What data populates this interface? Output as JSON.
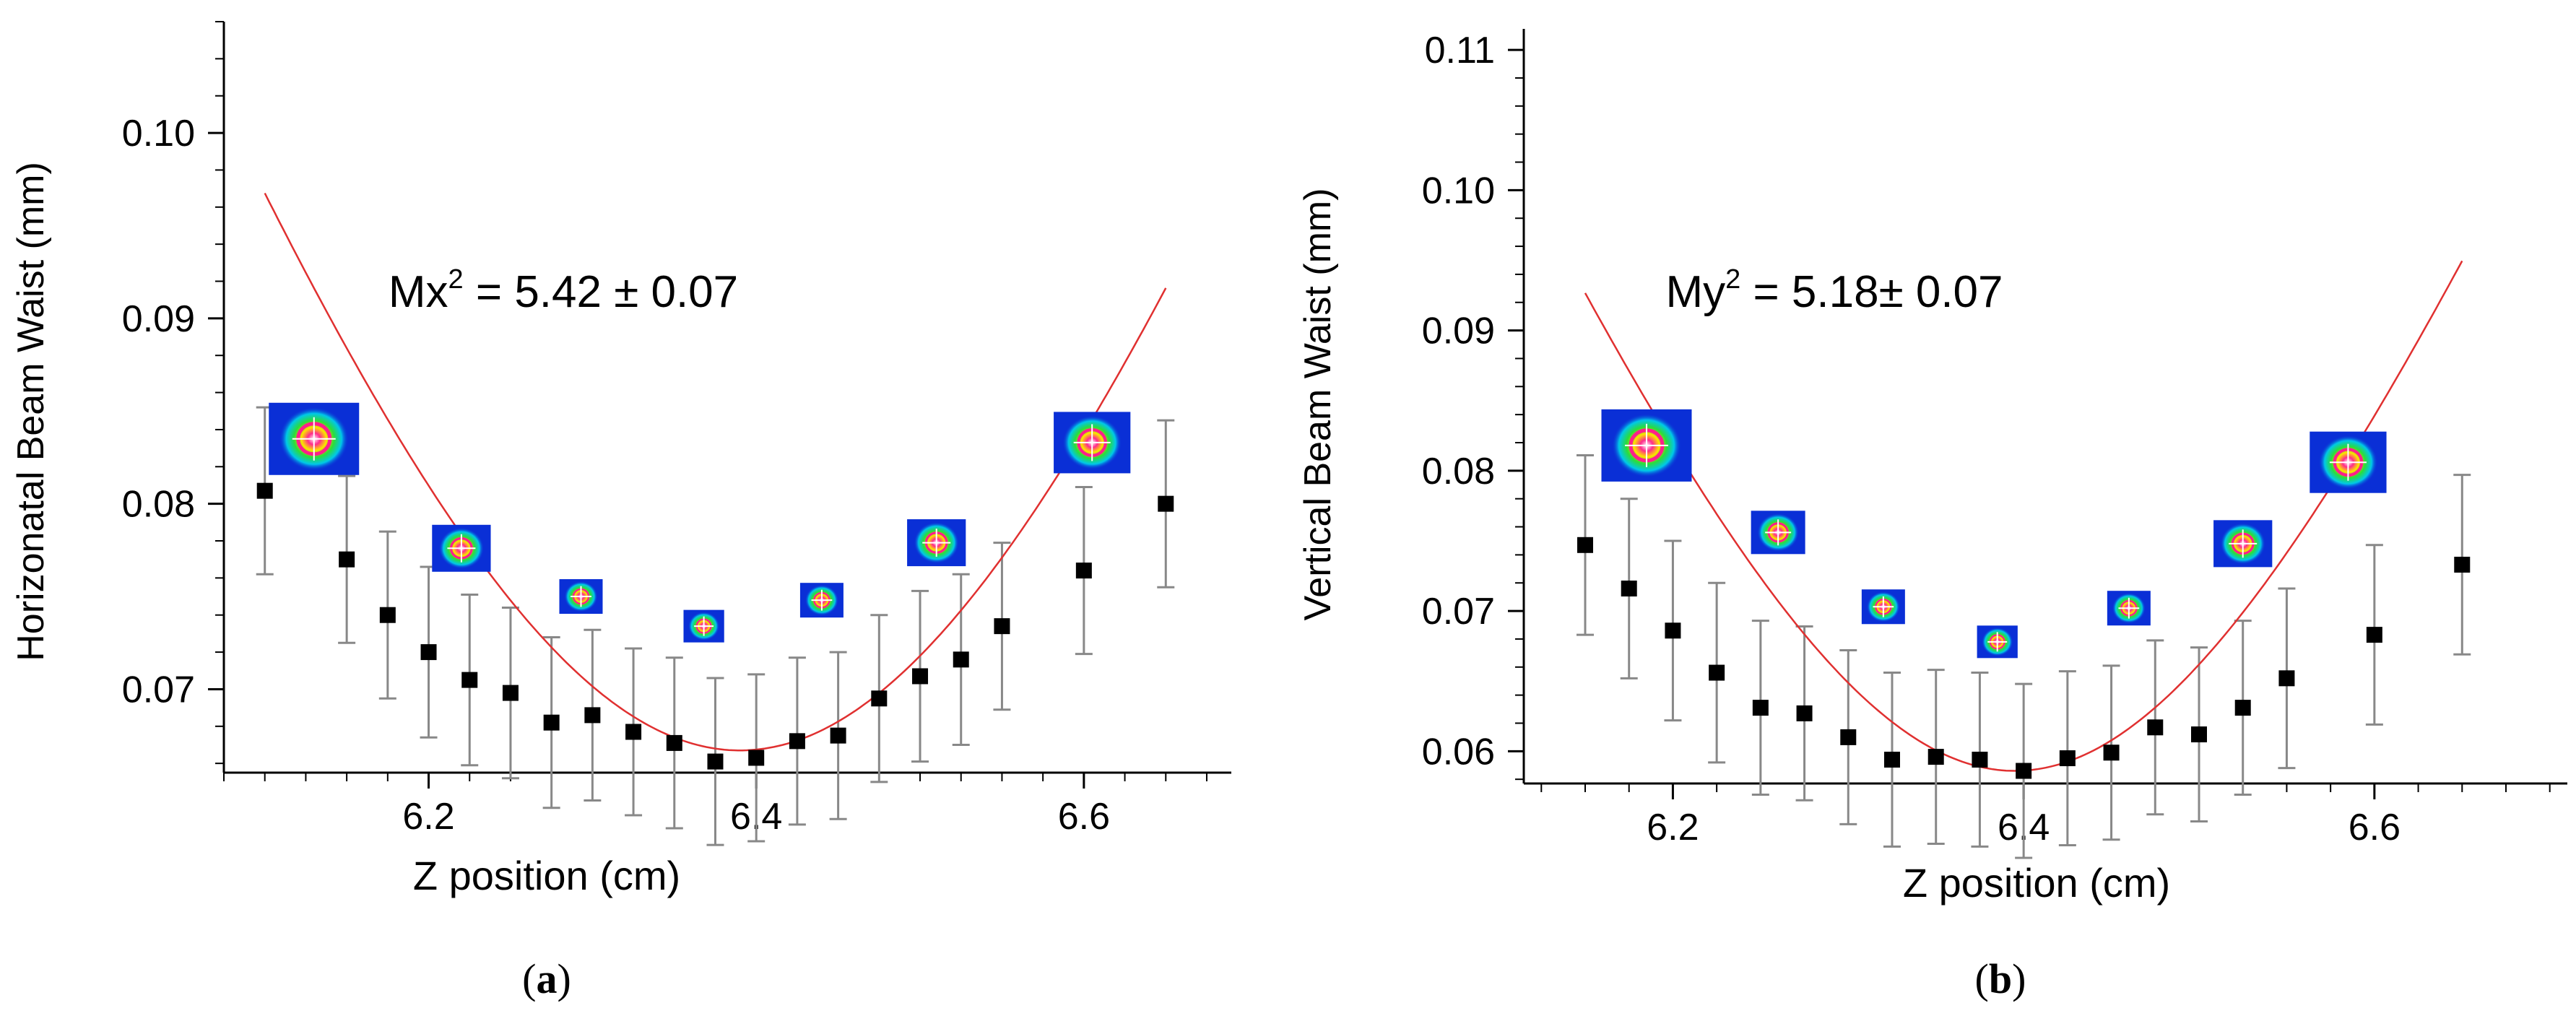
{
  "colors": {
    "marker": "#000000",
    "fit": "#e03030",
    "error_bar": "#888888",
    "axis": "#000000",
    "beam_background": "#0a2fd6"
  },
  "chart_data": [
    {
      "type": "scatter",
      "panel_label": "a",
      "xlabel": "Z position (cm)",
      "ylabel": "Horizonatal Beam Waist (mm)",
      "annotation": {
        "base": "Mx",
        "sup": "2",
        "rest": " = 5.42 ± 0.07"
      },
      "xlim": [
        6.075,
        6.69
      ],
      "ylim": [
        0.0655,
        0.106
      ],
      "xticks": [
        6.2,
        6.4,
        6.6
      ],
      "xtick_labels": [
        "6.2",
        "6.4",
        "6.6"
      ],
      "yticks": [
        0.07,
        0.08,
        0.09,
        0.1
      ],
      "ytick_labels": [
        "0.07",
        "0.08",
        "0.09",
        "0.10"
      ],
      "x_minor_step": 0.025,
      "y_minor_step": 0.002,
      "series": [
        {
          "name": "measured",
          "marker": "square",
          "x": [
            6.1,
            6.15,
            6.175,
            6.2,
            6.225,
            6.25,
            6.275,
            6.3,
            6.325,
            6.35,
            6.375,
            6.4,
            6.425,
            6.45,
            6.475,
            6.5,
            6.525,
            6.55,
            6.6,
            6.65
          ],
          "y": [
            0.0807,
            0.077,
            0.074,
            0.072,
            0.0705,
            0.0698,
            0.0682,
            0.0686,
            0.0677,
            0.0671,
            0.0661,
            0.0663,
            0.0672,
            0.0675,
            0.0695,
            0.0707,
            0.0716,
            0.0734,
            0.0764,
            0.08
          ],
          "err": [
            0.0045,
            0.0045,
            0.0045,
            0.0046,
            0.0046,
            0.0046,
            0.0046,
            0.0046,
            0.0045,
            0.0046,
            0.0045,
            0.0045,
            0.0045,
            0.0045,
            0.0045,
            0.0046,
            0.0046,
            0.0045,
            0.0045,
            0.0045
          ]
        },
        {
          "name": "fit",
          "type": "line",
          "model": "hyperbolic",
          "w0": 0.0667,
          "z0": 6.39,
          "zR": 0.276,
          "x_range": [
            6.1,
            6.65
          ]
        }
      ],
      "insets": [
        {
          "x": 6.13,
          "y": 0.0835,
          "size": 1.0
        },
        {
          "x": 6.22,
          "y": 0.0776,
          "size": 0.65
        },
        {
          "x": 6.293,
          "y": 0.075,
          "size": 0.48
        },
        {
          "x": 6.368,
          "y": 0.0734,
          "size": 0.45
        },
        {
          "x": 6.44,
          "y": 0.0748,
          "size": 0.48
        },
        {
          "x": 6.51,
          "y": 0.0779,
          "size": 0.65
        },
        {
          "x": 6.605,
          "y": 0.0833,
          "size": 0.85
        }
      ]
    },
    {
      "type": "scatter",
      "panel_label": "b",
      "xlabel": "Z position (cm)",
      "ylabel": "Vertical Beam Waist (mm)",
      "annotation": {
        "base": "My",
        "sup": "2",
        "rest": " = 5.18± 0.07"
      },
      "xlim": [
        6.115,
        6.71
      ],
      "ylim": [
        0.0577,
        0.1115
      ],
      "xticks": [
        6.2,
        6.4,
        6.6
      ],
      "xtick_labels": [
        "6.2",
        "6.4",
        "6.6"
      ],
      "yticks": [
        0.06,
        0.07,
        0.08,
        0.09,
        0.1,
        0.11
      ],
      "ytick_labels": [
        "0.06",
        "0.07",
        "0.08",
        "0.09",
        "0.10",
        "0.11"
      ],
      "x_minor_step": 0.025,
      "y_minor_step": 0.002,
      "series": [
        {
          "name": "measured",
          "marker": "square",
          "x": [
            6.15,
            6.175,
            6.2,
            6.225,
            6.25,
            6.275,
            6.3,
            6.325,
            6.35,
            6.375,
            6.4,
            6.425,
            6.45,
            6.475,
            6.5,
            6.525,
            6.55,
            6.6,
            6.65
          ],
          "y": [
            0.0747,
            0.0716,
            0.0686,
            0.0656,
            0.0631,
            0.0627,
            0.061,
            0.0594,
            0.0596,
            0.0594,
            0.0586,
            0.0595,
            0.0599,
            0.0617,
            0.0612,
            0.0631,
            0.0652,
            0.0683,
            0.0733
          ],
          "err": [
            0.0064,
            0.0064,
            0.0064,
            0.0064,
            0.0062,
            0.0062,
            0.0062,
            0.0062,
            0.0062,
            0.0062,
            0.0062,
            0.0062,
            0.0062,
            0.0062,
            0.0062,
            0.0062,
            0.0064,
            0.0064,
            0.0064
          ]
        },
        {
          "name": "fit",
          "type": "line",
          "model": "hyperbolic",
          "w0": 0.0586,
          "z0": 6.395,
          "zR": 0.2,
          "x_range": [
            6.15,
            6.65
          ]
        }
      ],
      "insets": [
        {
          "x": 6.185,
          "y": 0.0818,
          "size": 1.0
        },
        {
          "x": 6.26,
          "y": 0.0756,
          "size": 0.6
        },
        {
          "x": 6.32,
          "y": 0.0703,
          "size": 0.48
        },
        {
          "x": 6.385,
          "y": 0.0678,
          "size": 0.45
        },
        {
          "x": 6.46,
          "y": 0.0702,
          "size": 0.48
        },
        {
          "x": 6.525,
          "y": 0.0748,
          "size": 0.65
        },
        {
          "x": 6.585,
          "y": 0.0806,
          "size": 0.85
        }
      ]
    }
  ]
}
